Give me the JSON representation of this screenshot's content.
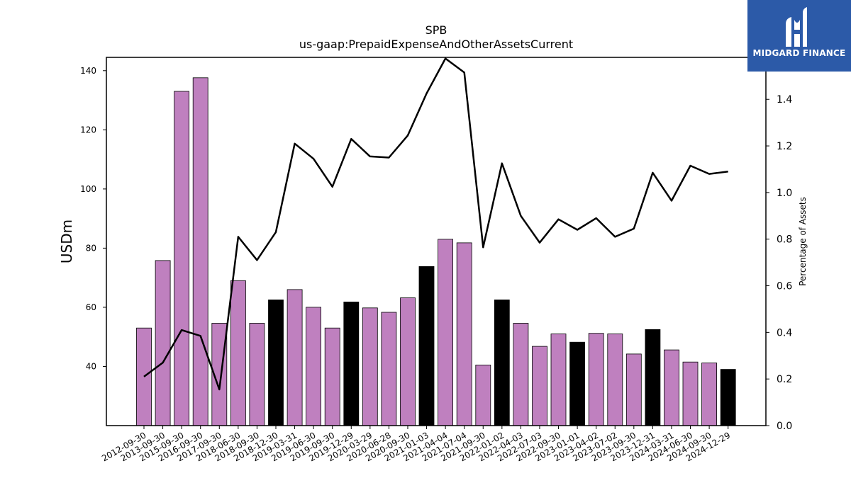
{
  "logo": {
    "text": "MIDGARD FINANCE",
    "icon": "midgard-logo-icon",
    "color": "#2c5aa8"
  },
  "chart_data": {
    "type": "bar",
    "title": "SPB",
    "subtitle": "us-gaap:PrepaidExpenseAndOtherAssetsCurrent",
    "ylabel": "USDm",
    "y2label": "Percentage of Assets",
    "ylim": [
      20,
      144.5
    ],
    "y2lim": [
      0,
      1.58
    ],
    "yticks": [
      40,
      60,
      80,
      100,
      120,
      140
    ],
    "y2ticks": [
      "0.0",
      "0.2",
      "0.4",
      "0.6",
      "0.8",
      "1.0",
      "1.2",
      "1.4"
    ],
    "colors": {
      "annual": "#bf80bf",
      "quarter_end_dec": "#000000",
      "line": "#000000"
    },
    "categories": [
      "2012-09-30",
      "2013-09-30",
      "2015-09-30",
      "2016-09-30",
      "2017-09-30",
      "2018-06-30",
      "2018-09-30",
      "2018-12-30",
      "2019-03-31",
      "2019-06-30",
      "2019-09-30",
      "2019-12-29",
      "2020-03-29",
      "2020-06-28",
      "2020-09-30",
      "2021-01-03",
      "2021-04-04",
      "2021-07-04",
      "2021-09-30",
      "2022-01-02",
      "2022-04-03",
      "2022-07-03",
      "2022-09-30",
      "2023-01-01",
      "2023-04-02",
      "2023-07-02",
      "2023-09-30",
      "2023-12-31",
      "2024-03-31",
      "2024-06-30",
      "2024-09-30",
      "2024-12-29"
    ],
    "series": [
      {
        "kind": "bar",
        "values": [
          53.0,
          75.8,
          133.0,
          137.6,
          54.6,
          69.0,
          54.6,
          62.5,
          66.0,
          60.0,
          53.0,
          61.8,
          59.8,
          58.3,
          63.2,
          73.8,
          83.0,
          81.8,
          40.5,
          62.5,
          54.6,
          46.8,
          51.0,
          48.2,
          51.2,
          51.0,
          44.2,
          52.5,
          45.6,
          41.5,
          41.2,
          39.0
        ],
        "highlight": [
          false,
          false,
          false,
          false,
          false,
          false,
          false,
          true,
          false,
          false,
          false,
          true,
          false,
          false,
          false,
          true,
          false,
          false,
          false,
          true,
          false,
          false,
          false,
          true,
          false,
          false,
          false,
          true,
          false,
          false,
          false,
          true
        ]
      },
      {
        "kind": "line",
        "axis": "right",
        "values": [
          0.21,
          0.27,
          0.41,
          0.385,
          0.155,
          0.81,
          0.71,
          0.83,
          1.21,
          1.145,
          1.025,
          1.23,
          1.155,
          1.15,
          1.245,
          1.425,
          1.575,
          1.515,
          0.765,
          1.125,
          0.9,
          0.785,
          0.885,
          0.84,
          0.89,
          0.81,
          0.845,
          1.085,
          0.965,
          1.115,
          1.08,
          1.09
        ]
      }
    ],
    "grid": false,
    "legend": "none"
  }
}
